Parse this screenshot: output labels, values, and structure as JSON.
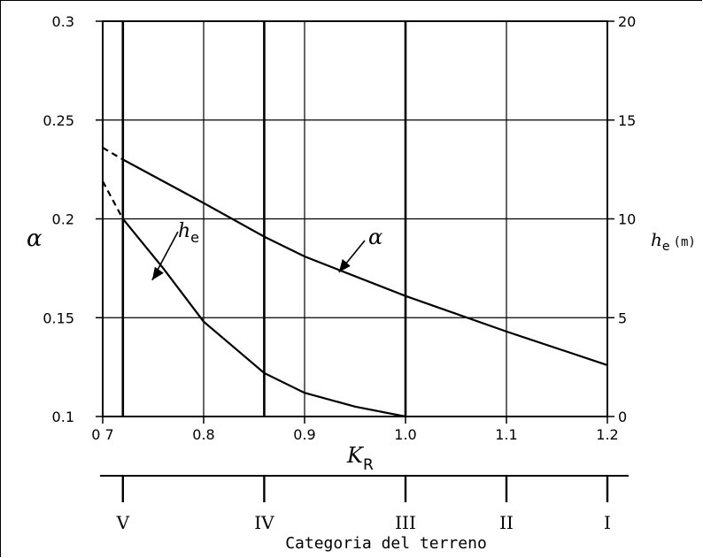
{
  "chart_data": {
    "type": "line",
    "x_axis": {
      "label_main": "K",
      "label_sub": "R",
      "ticks": [
        "0 7",
        "0.8",
        "0.9",
        "1.0",
        "1.1",
        "1.2"
      ],
      "tick_values": [
        0.7,
        0.8,
        0.9,
        1.0,
        1.1,
        1.2
      ],
      "range": [
        0.7,
        1.2
      ]
    },
    "y_left": {
      "label": "α",
      "ticks": [
        "0.1",
        "0.15",
        "0.2",
        "0.25",
        "0.3"
      ],
      "tick_values": [
        0.1,
        0.15,
        0.2,
        0.25,
        0.3
      ],
      "range": [
        0.1,
        0.3
      ]
    },
    "y_right": {
      "label_main": "h",
      "label_sub": "e",
      "label_unit": "(m)",
      "ticks": [
        "0",
        "5",
        "10",
        "15",
        "20"
      ],
      "tick_values": [
        0,
        5,
        10,
        15,
        20
      ],
      "range": [
        0,
        20
      ]
    },
    "grid": true,
    "category_lines_x": [
      0.72,
      0.86,
      1.0
    ],
    "series": [
      {
        "name": "α",
        "axis": "left",
        "dashed_points": [
          [
            0.7,
            0.236
          ],
          [
            0.72,
            0.23
          ]
        ],
        "points": [
          [
            0.72,
            0.23
          ],
          [
            0.8,
            0.208
          ],
          [
            0.86,
            0.191
          ],
          [
            0.9,
            0.181
          ],
          [
            1.0,
            0.161
          ],
          [
            1.1,
            0.143
          ],
          [
            1.2,
            0.126
          ]
        ]
      },
      {
        "name": "h",
        "name_sub": "e",
        "axis": "right",
        "dashed_points": [
          [
            0.7,
            11.9
          ],
          [
            0.72,
            10.0
          ]
        ],
        "points": [
          [
            0.72,
            10.0
          ],
          [
            0.76,
            7.5
          ],
          [
            0.8,
            4.8
          ],
          [
            0.86,
            2.2
          ],
          [
            0.9,
            1.2
          ],
          [
            0.95,
            0.5
          ],
          [
            1.0,
            0.0
          ]
        ]
      }
    ],
    "callouts": [
      {
        "series": "h",
        "label": "h",
        "sub": "e"
      },
      {
        "series": "α",
        "label": "α"
      }
    ],
    "categories": {
      "title": "Categoria del terreno",
      "labels": [
        "V",
        "IV",
        "III",
        "II",
        "I"
      ],
      "x_positions": [
        0.72,
        0.86,
        1.0,
        1.1,
        1.2
      ]
    }
  }
}
